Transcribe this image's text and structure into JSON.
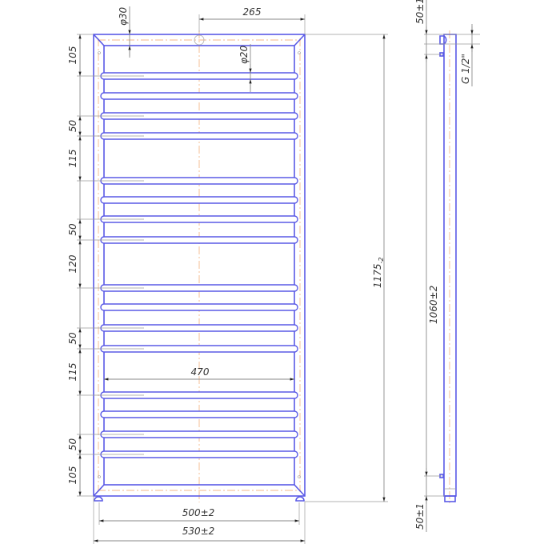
{
  "front_view": {
    "dimensions": {
      "top_offset": "265",
      "frame_tube_diameter": "φ30",
      "rail_diameter": "φ20",
      "inner_width": "470",
      "axis_width": "500±2",
      "overall_width": "530±2",
      "overall_height": "1175",
      "overall_height_tolerance": "-2",
      "vertical_spacings": [
        "105",
        "50",
        "115",
        "50",
        "120",
        "50",
        "115",
        "50",
        "105"
      ]
    }
  },
  "side_view": {
    "dimensions": {
      "top_offset": "50±1",
      "axis_height": "1060±2",
      "bottom_offset": "50±1",
      "thread": "G 1/2\""
    }
  },
  "colors": {
    "outline": "#5a5ae6",
    "centerline": "#f5b98a",
    "dimension": "#8a8a8a"
  }
}
